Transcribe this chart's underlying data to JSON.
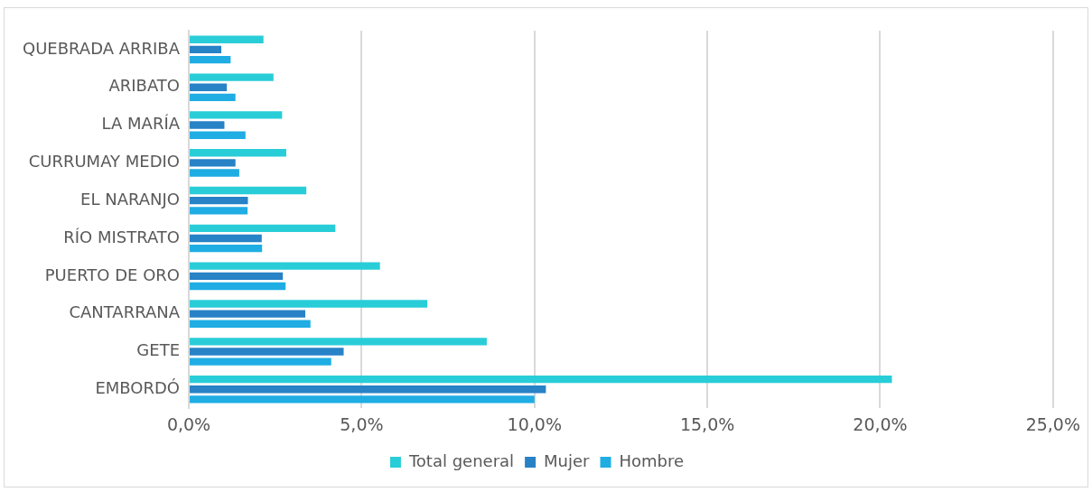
{
  "chart_data": {
    "type": "bar",
    "orientation": "horizontal",
    "categories": [
      "QUEBRADA ARRIBA",
      "ARIBATO",
      "LA MARÍA",
      "CURRUMAY MEDIO",
      "EL NARANJO",
      "RÍO MISTRATO",
      "PUERTO DE ORO",
      "CANTARRANA",
      "GETE",
      "EMBORDÓ"
    ],
    "series": [
      {
        "name": "Total general",
        "color": "#29cdd8",
        "values": [
          2.16,
          2.45,
          2.7,
          2.82,
          3.4,
          4.24,
          5.53,
          6.9,
          8.62,
          20.34
        ]
      },
      {
        "name": "Mujer",
        "color": "#2782c6",
        "values": [
          0.94,
          1.1,
          1.03,
          1.35,
          1.71,
          2.11,
          2.72,
          3.37,
          4.48,
          10.33
        ]
      },
      {
        "name": "Hombre",
        "color": "#1fade3",
        "values": [
          1.21,
          1.35,
          1.64,
          1.46,
          1.7,
          2.12,
          2.8,
          3.52,
          4.12,
          10.0
        ]
      }
    ],
    "xlim": [
      0,
      25
    ],
    "xticks": [
      {
        "value": 0,
        "label": "0,0%"
      },
      {
        "value": 5,
        "label": "5,0%"
      },
      {
        "value": 10,
        "label": "10,0%"
      },
      {
        "value": 15,
        "label": "15,0%"
      },
      {
        "value": 20,
        "label": "20,0%"
      },
      {
        "value": 25,
        "label": "25,0%"
      }
    ],
    "grid": "x",
    "legend": "bottom"
  }
}
